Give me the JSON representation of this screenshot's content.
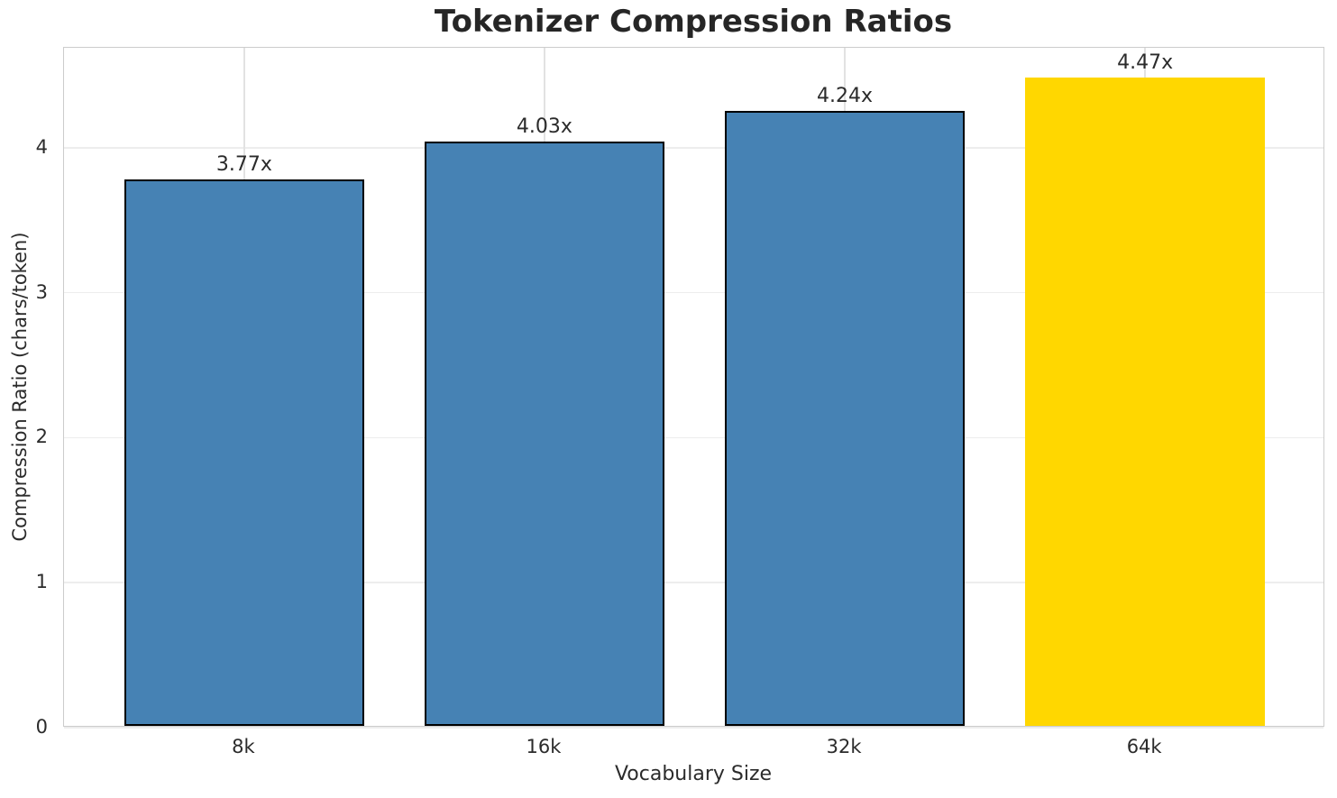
{
  "chart_data": {
    "type": "bar",
    "title": "Tokenizer Compression Ratios",
    "xlabel": "Vocabulary Size",
    "ylabel": "Compression Ratio (chars/token)",
    "categories": [
      "8k",
      "16k",
      "32k",
      "64k"
    ],
    "values": [
      3.77,
      4.03,
      4.24,
      4.47
    ],
    "bar_labels": [
      "3.77x",
      "4.03x",
      "4.24x",
      "4.47x"
    ],
    "bar_colors": [
      "#4682B4",
      "#4682B4",
      "#4682B4",
      "#FFD700"
    ],
    "bar_edge_colors": [
      "#000000",
      "#000000",
      "#000000",
      "none"
    ],
    "yticks": [
      0,
      1,
      2,
      3,
      4
    ],
    "ylim": [
      0,
      4.69
    ],
    "grid": true,
    "legend": "none"
  }
}
